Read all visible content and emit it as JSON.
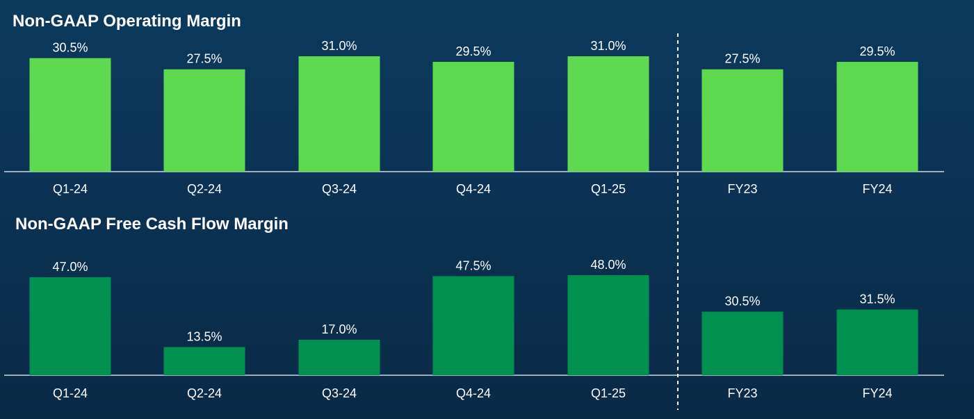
{
  "chart_data": [
    {
      "type": "bar",
      "title": "Non-GAAP Operating Margin",
      "categories": [
        "Q1-24",
        "Q2-24",
        "Q3-24",
        "Q4-24",
        "Q1-25",
        "FY23",
        "FY24"
      ],
      "values": [
        30.5,
        27.5,
        31.0,
        29.5,
        31.0,
        27.5,
        29.5
      ],
      "data_labels": [
        "30.5%",
        "27.5%",
        "31.0%",
        "29.5%",
        "31.0%",
        "27.5%",
        "29.5%"
      ],
      "unit": "%",
      "color": "#5fd94f",
      "ylim": [
        0,
        31
      ],
      "grid": false,
      "legend": "none"
    },
    {
      "type": "bar",
      "title": "Non-GAAP Free Cash Flow Margin",
      "categories": [
        "Q1-24",
        "Q2-24",
        "Q3-24",
        "Q4-24",
        "Q1-25",
        "FY23",
        "FY24"
      ],
      "values": [
        47.0,
        13.5,
        17.0,
        47.5,
        48.0,
        30.5,
        31.5
      ],
      "data_labels": [
        "47.0%",
        "13.5%",
        "17.0%",
        "47.5%",
        "48.0%",
        "30.5%",
        "31.5%"
      ],
      "unit": "%",
      "color": "#009150",
      "ylim": [
        0,
        49
      ],
      "grid": false,
      "legend": "none"
    }
  ],
  "colors": {
    "axis_line": "#cfd8e0",
    "separator": "#ffffff",
    "text": "#ffffff"
  }
}
